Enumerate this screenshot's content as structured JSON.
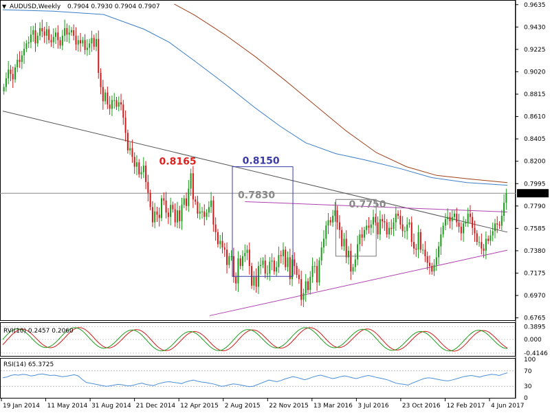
{
  "chart_data": [
    {
      "type": "candlestick",
      "symbol": "AUDUSD,Weekly",
      "ohlc_text": "0.7904 0.7930 0.7904 0.7907",
      "current_price": 0.7907,
      "current_price_label": "0.7907",
      "ylim": [
        0.675,
        0.9665
      ],
      "y_ticks": [
        "0.9635",
        "0.9430",
        "0.9225",
        "0.9020",
        "0.8815",
        "0.8610",
        "0.8405",
        "0.8200",
        "0.7995",
        "0.7790",
        "0.7585",
        "0.7380",
        "0.7175",
        "0.6970",
        "0.6765"
      ],
      "x_ticks": [
        "19 Jan 2014",
        "11 May 2014",
        "31 Aug 2014",
        "21 Dec 2014",
        "12 Apr 2015",
        "2 Aug 2015",
        "22 Nov 2015",
        "13 Mar 2016",
        "3 Jul 2016",
        "23 Oct 2016",
        "12 Feb 2017",
        "4 Jun 2017"
      ],
      "colors": {
        "bull": "#1a9c1a",
        "bear": "#d01818",
        "ma_fast": "#3a7ec8",
        "ma_slow": "#a0401a",
        "trendline": "#555555",
        "channel": "#b040b0"
      },
      "closes": [
        0.888,
        0.896,
        0.904,
        0.9,
        0.895,
        0.906,
        0.913,
        0.911,
        0.917,
        0.923,
        0.928,
        0.929,
        0.936,
        0.94,
        0.928,
        0.935,
        0.942,
        0.939,
        0.935,
        0.941,
        0.931,
        0.929,
        0.934,
        0.938,
        0.931,
        0.926,
        0.935,
        0.942,
        0.936,
        0.938,
        0.94,
        0.935,
        0.927,
        0.931,
        0.928,
        0.931,
        0.922,
        0.924,
        0.928,
        0.933,
        0.925,
        0.932,
        0.901,
        0.888,
        0.875,
        0.883,
        0.872,
        0.868,
        0.876,
        0.876,
        0.87,
        0.874,
        0.872,
        0.86,
        0.846,
        0.83,
        0.832,
        0.824,
        0.815,
        0.819,
        0.808,
        0.81,
        0.816,
        0.801,
        0.791,
        0.778,
        0.764,
        0.774,
        0.771,
        0.768,
        0.786,
        0.784,
        0.773,
        0.769,
        0.78,
        0.776,
        0.764,
        0.775,
        0.765,
        0.78,
        0.786,
        0.779,
        0.795,
        0.809,
        0.785,
        0.783,
        0.772,
        0.774,
        0.774,
        0.769,
        0.773,
        0.778,
        0.784,
        0.762,
        0.755,
        0.744,
        0.747,
        0.741,
        0.739,
        0.725,
        0.733,
        0.733,
        0.714,
        0.708,
        0.731,
        0.724,
        0.733,
        0.736,
        0.739,
        0.724,
        0.706,
        0.714,
        0.705,
        0.724,
        0.725,
        0.729,
        0.717,
        0.717,
        0.728,
        0.729,
        0.719,
        0.723,
        0.734,
        0.733,
        0.739,
        0.723,
        0.732,
        0.712,
        0.73,
        0.724,
        0.716,
        0.712,
        0.693,
        0.699,
        0.71,
        0.702,
        0.714,
        0.724,
        0.724,
        0.709,
        0.729,
        0.741,
        0.749,
        0.761,
        0.766,
        0.764,
        0.77,
        0.775,
        0.764,
        0.757,
        0.742,
        0.749,
        0.732,
        0.738,
        0.719,
        0.723,
        0.73,
        0.744,
        0.753,
        0.75,
        0.757,
        0.761,
        0.759,
        0.762,
        0.769,
        0.764,
        0.753,
        0.767,
        0.765,
        0.764,
        0.753,
        0.759,
        0.758,
        0.764,
        0.772,
        0.77,
        0.762,
        0.756,
        0.756,
        0.762,
        0.764,
        0.746,
        0.74,
        0.739,
        0.755,
        0.739,
        0.739,
        0.733,
        0.727,
        0.724,
        0.719,
        0.725,
        0.732,
        0.742,
        0.753,
        0.761,
        0.767,
        0.769,
        0.765,
        0.769,
        0.772,
        0.764,
        0.76,
        0.754,
        0.763,
        0.764,
        0.772,
        0.769,
        0.759,
        0.754,
        0.746,
        0.746,
        0.74,
        0.738,
        0.749,
        0.747,
        0.752,
        0.756,
        0.763,
        0.762,
        0.761,
        0.77,
        0.782,
        0.7907
      ],
      "ma_fast": [
        [
          0,
          0.9588
        ],
        [
          0.1,
          0.9575
        ],
        [
          0.2,
          0.9545
        ],
        [
          0.28,
          0.941
        ],
        [
          0.33,
          0.929
        ],
        [
          0.38,
          0.912
        ],
        [
          0.44,
          0.891
        ],
        [
          0.5,
          0.869
        ],
        [
          0.55,
          0.852
        ],
        [
          0.6,
          0.837
        ],
        [
          0.66,
          0.827
        ],
        [
          0.72,
          0.821
        ],
        [
          0.79,
          0.813
        ],
        [
          0.85,
          0.805
        ],
        [
          0.92,
          0.8005
        ],
        [
          1.0,
          0.798
        ]
      ],
      "ma_slow": [
        [
          0.34,
          0.964
        ],
        [
          0.38,
          0.954
        ],
        [
          0.44,
          0.936
        ],
        [
          0.5,
          0.916
        ],
        [
          0.56,
          0.894
        ],
        [
          0.62,
          0.871
        ],
        [
          0.68,
          0.848
        ],
        [
          0.74,
          0.828
        ],
        [
          0.8,
          0.815
        ],
        [
          0.86,
          0.807
        ],
        [
          0.92,
          0.804
        ],
        [
          1.0,
          0.8005
        ]
      ],
      "lines": [
        {
          "name": "long-trendline",
          "color": "#555555",
          "from": [
            0.0,
            0.866
          ],
          "to": [
            1.0,
            0.755
          ]
        },
        {
          "name": "support-trendline",
          "color": "#b040b0",
          "from": [
            0.41,
            0.6785
          ],
          "to": [
            1.0,
            0.7385
          ]
        },
        {
          "name": "resistance-trendline",
          "color": "#b040b0",
          "from": [
            0.48,
            0.783
          ],
          "to": [
            1.0,
            0.7735
          ]
        }
      ],
      "boxes": [
        {
          "name": "range-box-2016",
          "color": "#3a3aa8",
          "x": [
            0.455,
            0.575
          ],
          "y": [
            0.7145,
            0.815
          ]
        },
        {
          "name": "range-box-2017",
          "color": "#777777",
          "x": [
            0.66,
            0.74
          ],
          "y": [
            0.733,
            0.785
          ]
        }
      ],
      "annotations": [
        {
          "name": "annotation-0.8165",
          "text": "0.8165",
          "color": "#dd2222",
          "x": 0.31,
          "y": 0.817
        },
        {
          "name": "annotation-0.8150",
          "text": "0.8150",
          "color": "#3a3aa8",
          "x": 0.475,
          "y": 0.8175
        },
        {
          "name": "annotation-0.7830",
          "text": "0.7830",
          "color": "#888888",
          "x": 0.466,
          "y": 0.786
        },
        {
          "name": "annotation-0.7750",
          "text": "0.7750",
          "color": "#888888",
          "x": 0.686,
          "y": 0.7775
        }
      ]
    },
    {
      "type": "line",
      "name": "RVI(10)",
      "label": "RVI(10) 0.2457 0.2060",
      "y_ticks": [
        "0.3895",
        "0.000",
        "-0.4146"
      ],
      "ylim": [
        -0.48,
        0.48
      ],
      "series": [
        {
          "name": "main",
          "color": "#1a9c1a"
        },
        {
          "name": "signal",
          "color": "#d01818"
        }
      ]
    },
    {
      "type": "line",
      "name": "RSI(14)",
      "label": "RSI(14) 65.3725",
      "y_ticks": [
        "100",
        "70",
        "30",
        "0"
      ],
      "ylim": [
        0,
        100
      ],
      "levels": [
        30,
        70
      ],
      "color": "#4a8fd8",
      "values": [
        52,
        54,
        58,
        60,
        59,
        61,
        60,
        57,
        58,
        61,
        62,
        60,
        58,
        59,
        57,
        55,
        56,
        58,
        60,
        57,
        48,
        40,
        38,
        36,
        34,
        32,
        30,
        31,
        33,
        35,
        34,
        32,
        31,
        33,
        36,
        38,
        35,
        33,
        32,
        36,
        39,
        41,
        42,
        40,
        39,
        37,
        41,
        44,
        46,
        43,
        41,
        40,
        38,
        36,
        33,
        30,
        31,
        34,
        36,
        35,
        33,
        31,
        29,
        30,
        34,
        38,
        42,
        46,
        44,
        42,
        45,
        49,
        52,
        55,
        53,
        50,
        47,
        50,
        54,
        57,
        59,
        56,
        53,
        50,
        52,
        55,
        57,
        55,
        52,
        50,
        53,
        56,
        58,
        56,
        53,
        51,
        49,
        46,
        42,
        38,
        36,
        35,
        33,
        38,
        42,
        46,
        50,
        52,
        51,
        49,
        47,
        45,
        44,
        46,
        49,
        52,
        55,
        57,
        58,
        56,
        54,
        57,
        59,
        61,
        60,
        58,
        62,
        65
      ]
    }
  ]
}
